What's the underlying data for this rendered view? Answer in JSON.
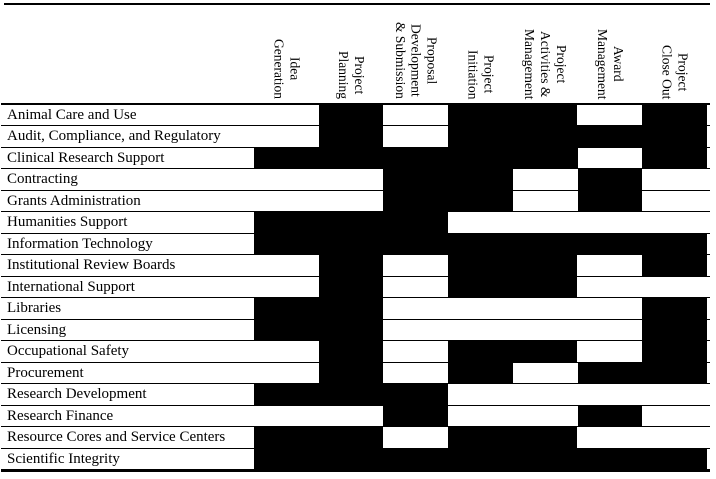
{
  "figure": {
    "background_color": "#ffffff",
    "fill_color": "#000000"
  },
  "chart_data": {
    "type": "heatmap",
    "legend_position": "none",
    "grid": "horizontal-lines",
    "columns": [
      "Idea\nGeneration",
      "Project\nPlanning",
      "Proposal\nDevelopment\n& Submission",
      "Project\nInitiation",
      "Project\nActivities &\nManagement",
      "Award\nManagement",
      "Project\nClose Out"
    ],
    "rows": [
      "Animal Care and Use",
      "Audit, Compliance, and Regulatory",
      "Clinical Research Support",
      "Contracting",
      "Grants Administration",
      "Humanities Support",
      "Information Technology",
      "Institutional Review Boards",
      "International Support",
      "Libraries",
      "Licensing",
      "Occupational Safety",
      "Procurement",
      "Research Development",
      "Research Finance",
      "Resource Cores and Service Centers",
      "Scientific Integrity"
    ],
    "matrix": [
      [
        0,
        1,
        0,
        1,
        1,
        0,
        1
      ],
      [
        0,
        1,
        0,
        1,
        1,
        1,
        1
      ],
      [
        1,
        1,
        1,
        1,
        1,
        0,
        1
      ],
      [
        0,
        0,
        1,
        1,
        0,
        1,
        0
      ],
      [
        0,
        0,
        1,
        1,
        0,
        1,
        0
      ],
      [
        1,
        1,
        1,
        0,
        0,
        0,
        0
      ],
      [
        1,
        1,
        1,
        1,
        1,
        1,
        1
      ],
      [
        0,
        1,
        0,
        1,
        1,
        0,
        1
      ],
      [
        0,
        1,
        0,
        1,
        1,
        0,
        0
      ],
      [
        1,
        1,
        0,
        0,
        0,
        0,
        1
      ],
      [
        1,
        1,
        0,
        0,
        0,
        0,
        1
      ],
      [
        0,
        1,
        0,
        1,
        1,
        0,
        1
      ],
      [
        0,
        1,
        0,
        1,
        0,
        1,
        1
      ],
      [
        1,
        1,
        1,
        0,
        0,
        0,
        0
      ],
      [
        0,
        0,
        1,
        0,
        0,
        1,
        0
      ],
      [
        1,
        1,
        0,
        1,
        1,
        0,
        0
      ],
      [
        1,
        1,
        1,
        1,
        1,
        1,
        1
      ]
    ]
  }
}
